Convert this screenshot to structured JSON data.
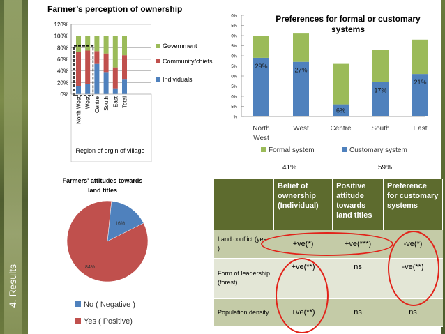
{
  "sidebar": {
    "label": "4.  Results"
  },
  "ownership_chart": {
    "title": "Farmer’s perception of ownership",
    "xlabel": "Region of orgin of village",
    "yticks": [
      "0%",
      "20%",
      "40%",
      "60%",
      "80%",
      "100%",
      "120%"
    ],
    "legend": [
      "Government",
      "Community/chiefs",
      "Individuals"
    ],
    "colors": {
      "government": "#9bbb59",
      "community": "#c0504d",
      "individuals": "#4f81bd"
    }
  },
  "preference_chart": {
    "title": "Preferences for formal or customary systems",
    "yticks": [
      "%",
      "5%",
      "0%",
      "5%",
      "0%",
      "5%",
      "0%",
      "5%",
      "0%",
      "5%",
      "0%"
    ],
    "legend": [
      "Formal system",
      "Customary system"
    ],
    "below_legend": [
      "41%",
      "59%"
    ],
    "colors": {
      "formal": "#9bbb59",
      "customary": "#4f81bd"
    }
  },
  "attitude_chart": {
    "title": "Farmers' attitudes towards land titles",
    "legend": [
      "No ( Negative )",
      "Yes ( Positive)"
    ],
    "colors": {
      "no": "#4f81bd",
      "yes": "#c0504d"
    }
  },
  "results_table": {
    "headers": [
      "Belief of ownership (Individual)",
      "Positive attitude towards land titles",
      "Preference for customary systems"
    ],
    "rows": [
      {
        "label": "Land conflict (yes )",
        "values": [
          "+ve(*)",
          "+ve(***)",
          "-ve(*)"
        ]
      },
      {
        "label": "Form of leadership (forest)",
        "values": [
          "+ve(**)",
          "ns",
          "-ve(**)"
        ]
      },
      {
        "label": "Population density",
        "values": [
          "+ve(**)",
          "ns",
          "ns"
        ]
      }
    ]
  },
  "chart_data": [
    {
      "type": "bar",
      "stacked": true,
      "title": "Farmer’s perception of ownership",
      "xlabel": "Region of orgin of village",
      "categories": [
        "North West",
        "West",
        "Centre",
        "South",
        "East",
        "Total"
      ],
      "series": [
        {
          "name": "Individuals",
          "values": [
            14,
            17,
            52,
            38,
            10,
            25
          ]
        },
        {
          "name": "Community/chiefs",
          "values": [
            58,
            58,
            22,
            32,
            36,
            42
          ]
        },
        {
          "name": "Government",
          "values": [
            28,
            25,
            26,
            30,
            54,
            33
          ]
        }
      ],
      "ylim": [
        0,
        120
      ],
      "legend": "right"
    },
    {
      "type": "bar",
      "stacked": true,
      "title": "Preferences for formal or customary systems",
      "categories": [
        "North West",
        "West",
        "Centre",
        "South",
        "East"
      ],
      "series": [
        {
          "name": "Customary system",
          "values": [
            29,
            27,
            6,
            17,
            21
          ],
          "labels": [
            "29%",
            "27%",
            "6%",
            "17%",
            "21%"
          ]
        },
        {
          "name": "Formal system",
          "values": [
            11,
            14,
            20,
            16,
            17
          ]
        }
      ],
      "ylim": [
        0,
        50
      ],
      "legend": "bottom"
    },
    {
      "type": "pie",
      "title": "Farmers' attitudes towards land titles",
      "categories": [
        "No ( Negative )",
        "Yes ( Positive)"
      ],
      "values": [
        16,
        84
      ],
      "labels": [
        "16%",
        "84%"
      ],
      "legend": "bottom"
    }
  ]
}
